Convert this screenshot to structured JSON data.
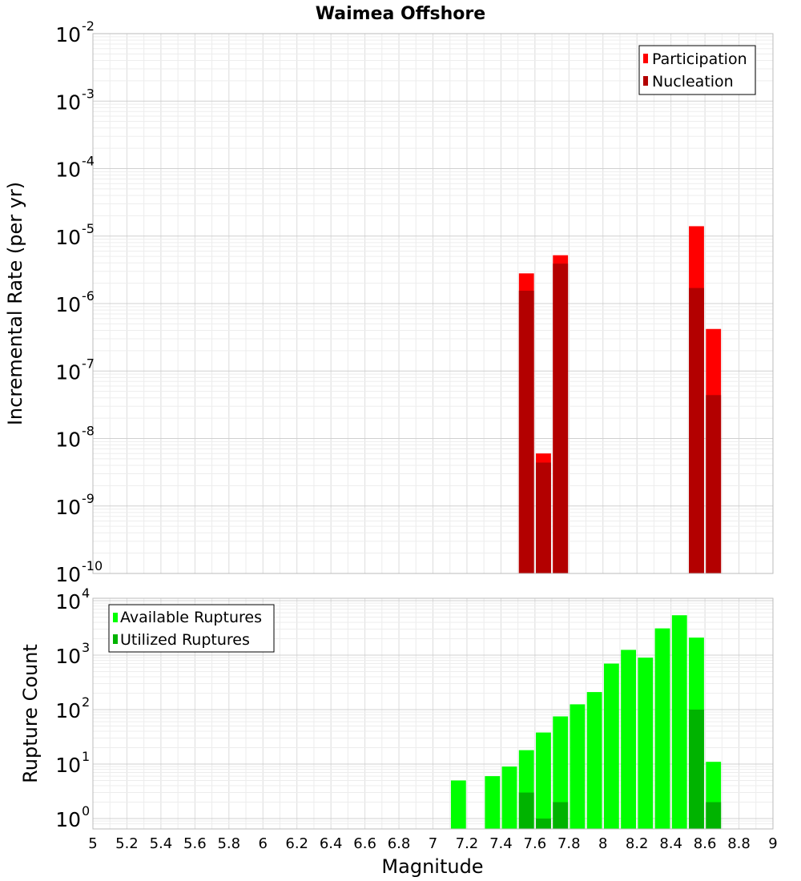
{
  "chart_data": [
    {
      "type": "bar",
      "title": "Waimea Offshore",
      "ylabel": "Incremental Rate (per yr)",
      "xlabel": "",
      "yscale": "log",
      "ylim": [
        1e-10,
        0.01
      ],
      "xlim": [
        5,
        9
      ],
      "bar_width": 0.1,
      "grid": true,
      "legend_position": "top-right",
      "yticks": [
        {
          "base": "10",
          "exp": "-2",
          "value": 0.01
        },
        {
          "base": "10",
          "exp": "-3",
          "value": 0.001
        },
        {
          "base": "10",
          "exp": "-4",
          "value": 0.0001
        },
        {
          "base": "10",
          "exp": "-5",
          "value": 1e-05
        },
        {
          "base": "10",
          "exp": "-6",
          "value": 1e-06
        },
        {
          "base": "10",
          "exp": "-7",
          "value": 1e-07
        },
        {
          "base": "10",
          "exp": "-8",
          "value": 1e-08
        },
        {
          "base": "10",
          "exp": "-9",
          "value": 1e-09
        },
        {
          "base": "10",
          "exp": "-10",
          "value": 1e-10
        }
      ],
      "series": [
        {
          "name": "Participation",
          "color": "#ff0000",
          "x": [
            7.55,
            7.65,
            7.75,
            8.55,
            8.65
          ],
          "values": [
            2.8e-06,
            6e-09,
            5.2e-06,
            1.4e-05,
            4.2e-07
          ]
        },
        {
          "name": "Nucleation",
          "color": "#b30000",
          "x": [
            7.55,
            7.65,
            7.75,
            8.55,
            8.65
          ],
          "values": [
            1.55e-06,
            4.4e-09,
            3.9e-06,
            1.7e-06,
            4.4e-08
          ]
        }
      ]
    },
    {
      "type": "bar",
      "title": "",
      "ylabel": "Rupture Count",
      "xlabel": "Magnitude",
      "yscale": "log",
      "ylim": [
        0.75,
        10000
      ],
      "xlim": [
        5,
        9
      ],
      "bar_width": 0.1,
      "grid": true,
      "legend_position": "top-left",
      "yticks": [
        {
          "base": "10",
          "exp": "4",
          "value": 10000
        },
        {
          "base": "10",
          "exp": "3",
          "value": 1000
        },
        {
          "base": "10",
          "exp": "2",
          "value": 100
        },
        {
          "base": "10",
          "exp": "1",
          "value": 10
        },
        {
          "base": "10",
          "exp": "0",
          "value": 1
        }
      ],
      "xticks": [
        "5",
        "5.2",
        "5.4",
        "5.6",
        "5.8",
        "6",
        "6.2",
        "6.4",
        "6.6",
        "6.8",
        "7",
        "7.2",
        "7.4",
        "7.6",
        "7.8",
        "8",
        "8.2",
        "8.4",
        "8.6",
        "8.8",
        "9"
      ],
      "series": [
        {
          "name": "Available Ruptures",
          "color": "#00ff00",
          "x": [
            7.15,
            7.35,
            7.45,
            7.55,
            7.65,
            7.75,
            7.85,
            7.95,
            8.05,
            8.15,
            8.25,
            8.35,
            8.45,
            8.55,
            8.65
          ],
          "values": [
            5,
            6,
            9,
            18,
            38,
            75,
            125,
            210,
            700,
            1250,
            900,
            3100,
            5400,
            2100,
            11
          ]
        },
        {
          "name": "Utilized Ruptures",
          "color": "#00b300",
          "x": [
            7.55,
            7.65,
            7.75,
            8.55,
            8.65
          ],
          "values": [
            3,
            1,
            2,
            100,
            2
          ]
        }
      ]
    }
  ]
}
